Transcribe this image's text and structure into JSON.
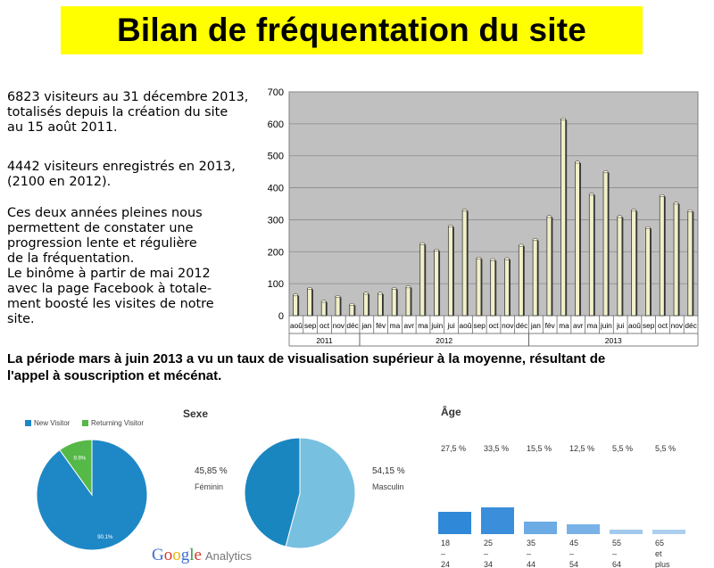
{
  "title": "Bilan de fréquentation du site",
  "intro_lines": [
    "6823 visiteurs au 31 décembre 2013,",
    "totalisés depuis la création du site",
    "au 15 août 2011."
  ],
  "registered_lines": [
    "4442 visiteurs enregistrés en 2013,",
    "(2100 en 2012)."
  ],
  "analysis_lines": [
    "Ces deux années pleines nous",
    "permettent de constater une",
    "progression lente et régulière",
    "de la fréquentation.",
    "Le binôme à partir de mai 2012",
    "avec la page Facebook à totale-",
    "ment boosté les visites de notre",
    "site."
  ],
  "bottom_lines": [
    "La période mars à juin 2013 a vu un taux de visualisation supérieur à la moyenne, résultant de",
    "l'appel à souscription et mécénat."
  ],
  "colors": {
    "title_bg": "#ffff00",
    "plot_bg": "#c0c0c0",
    "bar_fill": "#f2f0c8",
    "new_visitor": "#1e88c7",
    "returning_visitor": "#56b847",
    "feminin": "#1a86c0",
    "masculin": "#78c0e0",
    "age_bar": "#2f88d8"
  },
  "chart_data": [
    {
      "type": "bar",
      "categories": [
        "aoû",
        "sep",
        "oct",
        "nov",
        "déc",
        "jan",
        "fév",
        "ma",
        "avr",
        "ma",
        "juin",
        "jui",
        "aoû",
        "sep",
        "oct",
        "nov",
        "déc",
        "jan",
        "fév",
        "ma",
        "avr",
        "ma",
        "juin",
        "jui",
        "aoû",
        "sep",
        "oct",
        "nov",
        "déc"
      ],
      "values": [
        65,
        85,
        45,
        60,
        35,
        70,
        70,
        85,
        90,
        225,
        205,
        280,
        330,
        180,
        175,
        178,
        220,
        238,
        310,
        615,
        480,
        380,
        450,
        310,
        330,
        275,
        375,
        352,
        328
      ],
      "year_groups": [
        {
          "label": "2011",
          "count": 5
        },
        {
          "label": "2012",
          "count": 12
        },
        {
          "label": "2013",
          "count": 12
        }
      ],
      "yticks": [
        "0",
        "100",
        "200",
        "300",
        "400",
        "500",
        "600",
        "700"
      ],
      "ylim": [
        0,
        700
      ],
      "grid": true
    },
    {
      "type": "pie",
      "slices": [
        {
          "name": "New Visitor",
          "value": 90.1,
          "label": "90.1%"
        },
        {
          "name": "Returning Visitor",
          "value": 9.9,
          "label": "9.9%"
        }
      ],
      "legend": "top"
    },
    {
      "type": "pie",
      "title": "Sexe",
      "slices": [
        {
          "name": "Féminin",
          "value": 45.85,
          "label": "45,85 %"
        },
        {
          "name": "Masculin",
          "value": 54.15,
          "label": "54,15 %"
        }
      ]
    },
    {
      "type": "bar",
      "title": "Âge",
      "categories": [
        "18 – 24",
        "25 – 34",
        "35 – 44",
        "45 – 54",
        "55 – 64",
        "65 et plus"
      ],
      "values": [
        27.5,
        33.5,
        15.5,
        12.5,
        5.5,
        5.5
      ],
      "value_labels": [
        "27,5 %",
        "33,5 %",
        "15,5 %",
        "12,5 %",
        "5,5 %",
        "5,5 %"
      ]
    }
  ],
  "google_analytics": {
    "brand": "Google",
    "product": "Analytics"
  }
}
